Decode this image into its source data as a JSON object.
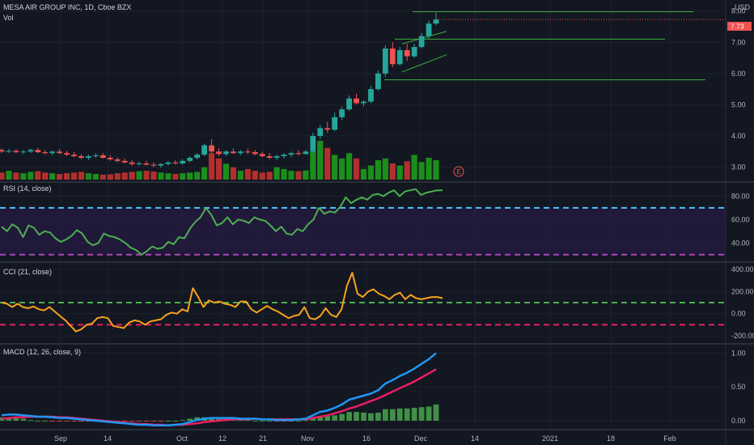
{
  "header": {
    "symbol_line": "MESA AIR GROUP INC, 1D, Cboe BZX",
    "vol_label": "Vol",
    "currency": "USD",
    "last_price_tag": "7.73",
    "earnings_marker": "E"
  },
  "colors": {
    "background": "#131722",
    "up": "#26a69a",
    "down": "#ef5350",
    "vol_up": "#1b8e1b",
    "vol_down": "#b2302c",
    "trendline": "#3fae3f",
    "rsi_line": "#4caf50",
    "rsi_band": "#2c1b4e",
    "cci_line": "#f7a21b",
    "macd_line": "#2196f3",
    "signal_line": "#e91e63",
    "hist": "#4caf50"
  },
  "chart_data": [
    {
      "name": "price",
      "type": "candlestick",
      "ylim": [
        2.6,
        8.2
      ],
      "yticks": [
        "8.00",
        "7.00",
        "6.00",
        "5.00",
        "4.00",
        "3.00"
      ],
      "ytick_values": [
        8,
        7,
        6,
        5,
        4,
        3
      ],
      "x_labels": [
        "Sep",
        "14",
        "Oct",
        "12",
        "21",
        "Nov",
        "16",
        "Dec",
        "14",
        "2021",
        "18",
        "Feb"
      ],
      "candles": [
        [
          3.55,
          3.6,
          3.45,
          3.5
        ],
        [
          3.5,
          3.58,
          3.45,
          3.52
        ],
        [
          3.52,
          3.58,
          3.45,
          3.48
        ],
        [
          3.48,
          3.55,
          3.42,
          3.5
        ],
        [
          3.5,
          3.6,
          3.45,
          3.55
        ],
        [
          3.55,
          3.62,
          3.45,
          3.48
        ],
        [
          3.48,
          3.55,
          3.4,
          3.45
        ],
        [
          3.45,
          3.52,
          3.38,
          3.5
        ],
        [
          3.5,
          3.58,
          3.42,
          3.45
        ],
        [
          3.45,
          3.52,
          3.35,
          3.4
        ],
        [
          3.4,
          3.48,
          3.32,
          3.35
        ],
        [
          3.35,
          3.42,
          3.25,
          3.3
        ],
        [
          3.3,
          3.4,
          3.22,
          3.35
        ],
        [
          3.35,
          3.45,
          3.3,
          3.38
        ],
        [
          3.38,
          3.45,
          3.28,
          3.3
        ],
        [
          3.3,
          3.38,
          3.2,
          3.25
        ],
        [
          3.25,
          3.32,
          3.15,
          3.2
        ],
        [
          3.2,
          3.28,
          3.12,
          3.15
        ],
        [
          3.15,
          3.22,
          3.05,
          3.1
        ],
        [
          3.1,
          3.18,
          3.05,
          3.12
        ],
        [
          3.12,
          3.2,
          3.05,
          3.08
        ],
        [
          3.08,
          3.15,
          3.0,
          3.05
        ],
        [
          3.05,
          3.12,
          2.98,
          3.1
        ],
        [
          3.1,
          3.2,
          3.05,
          3.15
        ],
        [
          3.15,
          3.22,
          3.08,
          3.12
        ],
        [
          3.12,
          3.25,
          3.08,
          3.2
        ],
        [
          3.2,
          3.35,
          3.15,
          3.3
        ],
        [
          3.3,
          3.45,
          3.25,
          3.4
        ],
        [
          3.4,
          3.75,
          3.35,
          3.7
        ],
        [
          3.7,
          3.9,
          3.45,
          3.5
        ],
        [
          3.5,
          3.6,
          3.35,
          3.42
        ],
        [
          3.42,
          3.55,
          3.35,
          3.5
        ],
        [
          3.5,
          3.6,
          3.42,
          3.45
        ],
        [
          3.45,
          3.55,
          3.38,
          3.5
        ],
        [
          3.5,
          3.6,
          3.42,
          3.48
        ],
        [
          3.48,
          3.55,
          3.38,
          3.42
        ],
        [
          3.42,
          3.5,
          3.32,
          3.35
        ],
        [
          3.35,
          3.45,
          3.25,
          3.3
        ],
        [
          3.3,
          3.4,
          3.22,
          3.35
        ],
        [
          3.35,
          3.45,
          3.28,
          3.4
        ],
        [
          3.4,
          3.5,
          3.32,
          3.45
        ],
        [
          3.45,
          3.55,
          3.38,
          3.42
        ],
        [
          3.42,
          3.55,
          3.4,
          3.5
        ],
        [
          3.5,
          4.1,
          3.45,
          4.0
        ],
        [
          4.0,
          4.35,
          3.9,
          4.25
        ],
        [
          4.25,
          4.45,
          4.1,
          4.2
        ],
        [
          4.2,
          4.75,
          4.15,
          4.6
        ],
        [
          4.6,
          4.95,
          4.5,
          4.85
        ],
        [
          4.85,
          5.3,
          4.8,
          5.2
        ],
        [
          5.2,
          5.35,
          5.0,
          5.05
        ],
        [
          5.05,
          5.15,
          4.95,
          5.1
        ],
        [
          5.1,
          5.6,
          5.05,
          5.5
        ],
        [
          5.5,
          6.1,
          5.45,
          6.0
        ],
        [
          6.0,
          6.9,
          5.9,
          6.8
        ],
        [
          6.8,
          7.0,
          6.2,
          6.3
        ],
        [
          6.3,
          6.85,
          6.25,
          6.75
        ],
        [
          6.75,
          6.95,
          6.4,
          6.55
        ],
        [
          6.55,
          6.95,
          6.5,
          6.85
        ],
        [
          6.85,
          7.3,
          6.8,
          7.2
        ],
        [
          7.2,
          7.7,
          7.1,
          7.6
        ],
        [
          7.6,
          7.95,
          7.55,
          7.73
        ]
      ],
      "trendlines": [
        [
          7.98,
          7.98
        ],
        [
          7.1,
          7.1
        ],
        [
          5.8,
          5.8
        ]
      ],
      "volume": [
        2,
        2.5,
        2,
        1.8,
        2.2,
        2.4,
        2,
        1.8,
        1.6,
        1.8,
        2,
        2.2,
        1.8,
        1.6,
        1.4,
        1.5,
        1.8,
        2,
        2.2,
        2.4,
        2.5,
        2.3,
        2,
        1.8,
        1.6,
        1.8,
        2,
        2.2,
        3.5,
        7.5,
        6,
        4.5,
        3.5,
        2.5,
        3,
        2.5,
        2,
        2.2,
        3.5,
        3,
        2.5,
        2.4,
        2.6,
        8,
        11,
        9,
        7,
        6,
        7.5,
        6,
        3,
        4,
        5.5,
        6,
        4.6,
        4,
        5.2,
        7,
        5,
        6.2,
        5.5
      ]
    },
    {
      "name": "RSI (14, close)",
      "type": "line",
      "ylim": [
        25,
        90
      ],
      "yticks": [
        "80.00",
        "60.00",
        "40.00"
      ],
      "ytick_values": [
        80,
        60,
        40
      ],
      "bands": [
        70,
        30
      ],
      "values": [
        54,
        50,
        56,
        53,
        45,
        55,
        53,
        47,
        50,
        49,
        44,
        41,
        43,
        46,
        51,
        48,
        41,
        38,
        40,
        48,
        46,
        45,
        43,
        40,
        36,
        34,
        30,
        33,
        37,
        35,
        36,
        41,
        39,
        45,
        44,
        52,
        58,
        62,
        70,
        64,
        55,
        57,
        62,
        56,
        60,
        59,
        57,
        62,
        60,
        59,
        55,
        50,
        54,
        48,
        47,
        52,
        50,
        56,
        60,
        70,
        65,
        67,
        66,
        71,
        79,
        74,
        77,
        79,
        77,
        81,
        82,
        80,
        83,
        85,
        80,
        84,
        85,
        86,
        81,
        83,
        84,
        85,
        85
      ]
    },
    {
      "name": "CCI (21, close)",
      "type": "line",
      "ylim": [
        -250,
        450
      ],
      "yticks": [
        "400.00",
        "200.00",
        "0.00",
        "-200.00"
      ],
      "ytick_values": [
        400,
        200,
        0,
        -200
      ],
      "bands": [
        100,
        -100
      ],
      "values": [
        100,
        90,
        60,
        90,
        60,
        50,
        65,
        40,
        30,
        60,
        20,
        -20,
        -60,
        -110,
        -160,
        -140,
        -100,
        -90,
        -40,
        -30,
        -40,
        -110,
        -120,
        -130,
        -80,
        -60,
        -70,
        -100,
        -70,
        -60,
        -50,
        -10,
        10,
        0,
        40,
        20,
        230,
        150,
        60,
        120,
        100,
        110,
        90,
        80,
        60,
        110,
        110,
        40,
        10,
        40,
        70,
        40,
        20,
        -10,
        -40,
        -20,
        -10,
        60,
        -40,
        -50,
        -20,
        50,
        -10,
        -30,
        40,
        250,
        370,
        180,
        150,
        200,
        220,
        180,
        160,
        130,
        170,
        190,
        130,
        170,
        140,
        130,
        140,
        150,
        150,
        140
      ]
    },
    {
      "name": "MACD (12, 26, close, 9)",
      "type": "macd",
      "ylim": [
        -0.12,
        1.1
      ],
      "yticks": [
        "1.00",
        "0.50",
        "0.00"
      ],
      "ytick_values": [
        1,
        0.5,
        0
      ],
      "macd": [
        0.08,
        0.09,
        0.09,
        0.08,
        0.07,
        0.06,
        0.06,
        0.05,
        0.04,
        0.04,
        0.03,
        0.02,
        0.01,
        0.0,
        -0.01,
        -0.02,
        -0.03,
        -0.04,
        -0.05,
        -0.06,
        -0.06,
        -0.07,
        -0.07,
        -0.07,
        -0.06,
        -0.05,
        -0.02,
        0.01,
        0.03,
        0.04,
        0.04,
        0.04,
        0.04,
        0.03,
        0.03,
        0.03,
        0.02,
        0.02,
        0.01,
        0.01,
        0.01,
        0.02,
        0.03,
        0.08,
        0.13,
        0.15,
        0.19,
        0.24,
        0.31,
        0.34,
        0.37,
        0.4,
        0.45,
        0.55,
        0.6,
        0.66,
        0.71,
        0.77,
        0.84,
        0.91,
        1.0
      ],
      "signal": [
        0.03,
        0.04,
        0.05,
        0.05,
        0.06,
        0.06,
        0.06,
        0.06,
        0.05,
        0.05,
        0.04,
        0.03,
        0.02,
        0.01,
        0.0,
        -0.01,
        -0.02,
        -0.03,
        -0.04,
        -0.05,
        -0.05,
        -0.06,
        -0.06,
        -0.07,
        -0.06,
        -0.06,
        -0.05,
        -0.04,
        -0.02,
        -0.01,
        0.0,
        0.01,
        0.02,
        0.02,
        0.02,
        0.03,
        0.02,
        0.02,
        0.02,
        0.02,
        0.02,
        0.02,
        0.02,
        0.04,
        0.06,
        0.08,
        0.11,
        0.14,
        0.18,
        0.21,
        0.25,
        0.29,
        0.33,
        0.38,
        0.43,
        0.48,
        0.53,
        0.58,
        0.64,
        0.7,
        0.76
      ]
    }
  ]
}
